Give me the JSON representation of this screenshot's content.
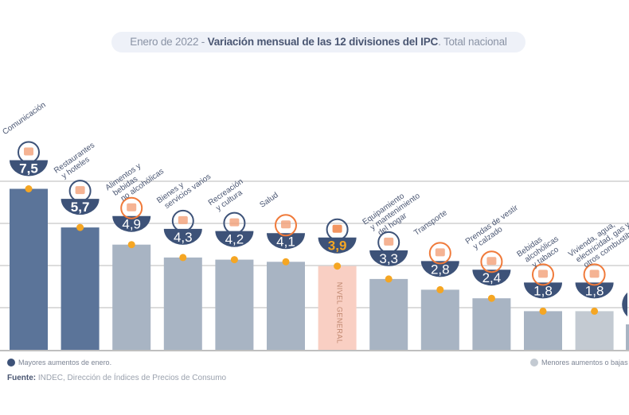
{
  "title": {
    "prefix": "Enero de 2022 - ",
    "main": "Variación mensual de las 12 divisiones del IPC",
    "suffix": ". Total nacional"
  },
  "colors": {
    "bubble": "#3d5278",
    "dot": "#f5a623",
    "dark_bar": "#5b7499",
    "light_bar": "#a8b4c3",
    "lighter_bar": "#c3cad2",
    "general_bar": "#f9cfc3",
    "grid": "#c8c8c8",
    "icon": "#f07a3a"
  },
  "chart_data": {
    "type": "bar",
    "title": "Enero de 2022 - Variación mensual de las 12 divisiones del IPC. Total nacional",
    "ylim": [
      0,
      7.5
    ],
    "grid": true,
    "categories": [
      {
        "label": [
          "Comunicación"
        ],
        "value": "7,5",
        "v": 7.5,
        "group": "dark",
        "icon": "smartphone-icon"
      },
      {
        "label": [
          "Restaurantes",
          "y hoteles"
        ],
        "value": "5,7",
        "v": 5.7,
        "group": "dark",
        "icon": "plate-cutlery-icon"
      },
      {
        "label": [
          "Alimentos y",
          "bebidas",
          "no alcohólicas"
        ],
        "value": "4,9",
        "v": 4.9,
        "group": "light",
        "icon": "chicken-icon"
      },
      {
        "label": [
          "Bienes y",
          "servicios varios"
        ],
        "value": "4,3",
        "v": 4.3,
        "group": "light",
        "icon": "comb-scissors-icon"
      },
      {
        "label": [
          "Recreación",
          "y cultura"
        ],
        "value": "4,2",
        "v": 4.2,
        "group": "light",
        "icon": "beach-umbrella-icon"
      },
      {
        "label": [
          "Salud"
        ],
        "value": "4,1",
        "v": 4.1,
        "group": "light",
        "icon": "medical-cross-icon"
      },
      {
        "label": [],
        "value": "3,9",
        "v": 3.9,
        "group": "general",
        "icon": "shopping-basket-icon",
        "bar_text": "NIVEL GENERAL"
      },
      {
        "label": [
          "Equipamiento",
          "y mantenimiento",
          "del hogar"
        ],
        "value": "3,3",
        "v": 3.3,
        "group": "light",
        "icon": "washing-machine-icon"
      },
      {
        "label": [
          "Transporte"
        ],
        "value": "2,8",
        "v": 2.8,
        "group": "light",
        "icon": "car-icon"
      },
      {
        "label": [
          "Prendas de vestir",
          "y calzado"
        ],
        "value": "2,4",
        "v": 2.4,
        "group": "light",
        "icon": "tshirt-icon"
      },
      {
        "label": [
          "Bebidas",
          "alcohólicas",
          "y tabaco"
        ],
        "value": "1,8",
        "v": 1.8,
        "group": "light",
        "icon": "bottle-icon"
      },
      {
        "label": [
          "Vivienda, agua,",
          "electricidad, gas y",
          "otros combustibles"
        ],
        "value": "1,8",
        "v": 1.8,
        "group": "lighter",
        "icon": "lightbulb-icon"
      }
    ]
  },
  "legend": {
    "high": "Mayores aumentos de enero.",
    "low": "Menores aumentos o bajas"
  },
  "source": {
    "label": "Fuente:",
    "text": " INDEC, Dirección de Índices de Precios de Consumo"
  }
}
